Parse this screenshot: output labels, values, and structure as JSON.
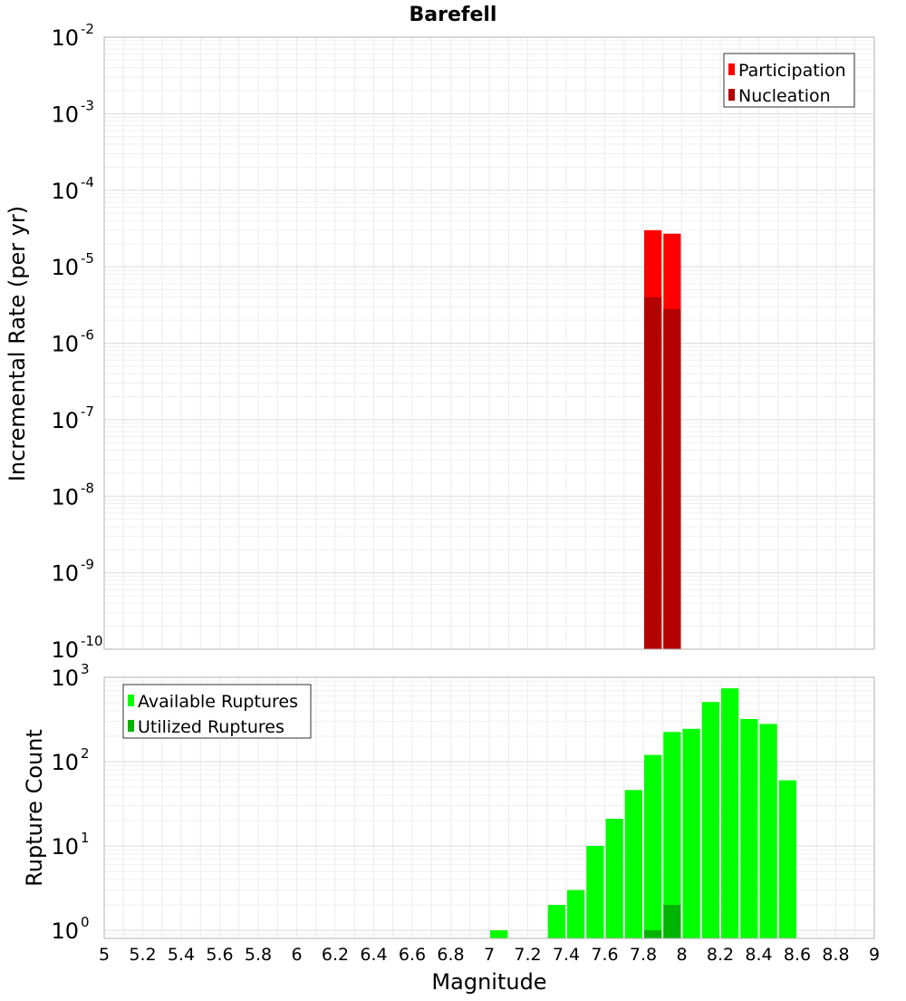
{
  "title": "Barefell",
  "chart_data": [
    {
      "type": "bar",
      "title": "Barefell",
      "xlabel": "Magnitude",
      "ylabel": "Incremental Rate (per yr)",
      "yscale": "log",
      "xlim": [
        5,
        9
      ],
      "ylim": [
        1e-10,
        0.01
      ],
      "grid": true,
      "legend_position": "top-right",
      "bin_width": 0.1,
      "series": [
        {
          "name": "Participation",
          "color": "#ff0000",
          "points": [
            {
              "x": 7.85,
              "y": 3e-05
            },
            {
              "x": 7.95,
              "y": 2.7e-05
            }
          ]
        },
        {
          "name": "Nucleation",
          "color": "#b30000",
          "points": [
            {
              "x": 7.85,
              "y": 4e-06
            },
            {
              "x": 7.95,
              "y": 2.8e-06
            }
          ]
        }
      ]
    },
    {
      "type": "bar",
      "xlabel": "Magnitude",
      "ylabel": "Rupture Count",
      "yscale": "log",
      "xlim": [
        5,
        9
      ],
      "ylim": [
        0.8,
        1000
      ],
      "grid": true,
      "legend_position": "top-left",
      "bin_width": 0.1,
      "series": [
        {
          "name": "Available Ruptures",
          "color": "#00ff00",
          "points": [
            {
              "x": 7.05,
              "y": 1
            },
            {
              "x": 7.35,
              "y": 2
            },
            {
              "x": 7.45,
              "y": 3
            },
            {
              "x": 7.55,
              "y": 10
            },
            {
              "x": 7.65,
              "y": 21
            },
            {
              "x": 7.75,
              "y": 46
            },
            {
              "x": 7.85,
              "y": 120
            },
            {
              "x": 7.95,
              "y": 225
            },
            {
              "x": 8.05,
              "y": 245
            },
            {
              "x": 8.15,
              "y": 510
            },
            {
              "x": 8.25,
              "y": 740
            },
            {
              "x": 8.35,
              "y": 320
            },
            {
              "x": 8.45,
              "y": 280
            },
            {
              "x": 8.55,
              "y": 60
            }
          ]
        },
        {
          "name": "Utilized Ruptures",
          "color": "#00b300",
          "points": [
            {
              "x": 7.85,
              "y": 1
            },
            {
              "x": 7.95,
              "y": 2
            }
          ]
        }
      ]
    }
  ],
  "x_ticks": [
    "5",
    "5.2",
    "5.4",
    "5.6",
    "5.8",
    "6",
    "6.2",
    "6.4",
    "6.6",
    "6.8",
    "7",
    "7.2",
    "7.4",
    "7.6",
    "7.8",
    "8",
    "8.2",
    "8.4",
    "8.6",
    "8.8",
    "9"
  ],
  "top_y_ticks": [
    {
      "base": "10",
      "exp": "-10"
    },
    {
      "base": "10",
      "exp": "-9"
    },
    {
      "base": "10",
      "exp": "-8"
    },
    {
      "base": "10",
      "exp": "-7"
    },
    {
      "base": "10",
      "exp": "-6"
    },
    {
      "base": "10",
      "exp": "-5"
    },
    {
      "base": "10",
      "exp": "-4"
    },
    {
      "base": "10",
      "exp": "-3"
    },
    {
      "base": "10",
      "exp": "-2"
    }
  ],
  "bottom_y_ticks": [
    {
      "base": "10",
      "exp": "0"
    },
    {
      "base": "10",
      "exp": "1"
    },
    {
      "base": "10",
      "exp": "2"
    },
    {
      "base": "10",
      "exp": "3"
    }
  ]
}
